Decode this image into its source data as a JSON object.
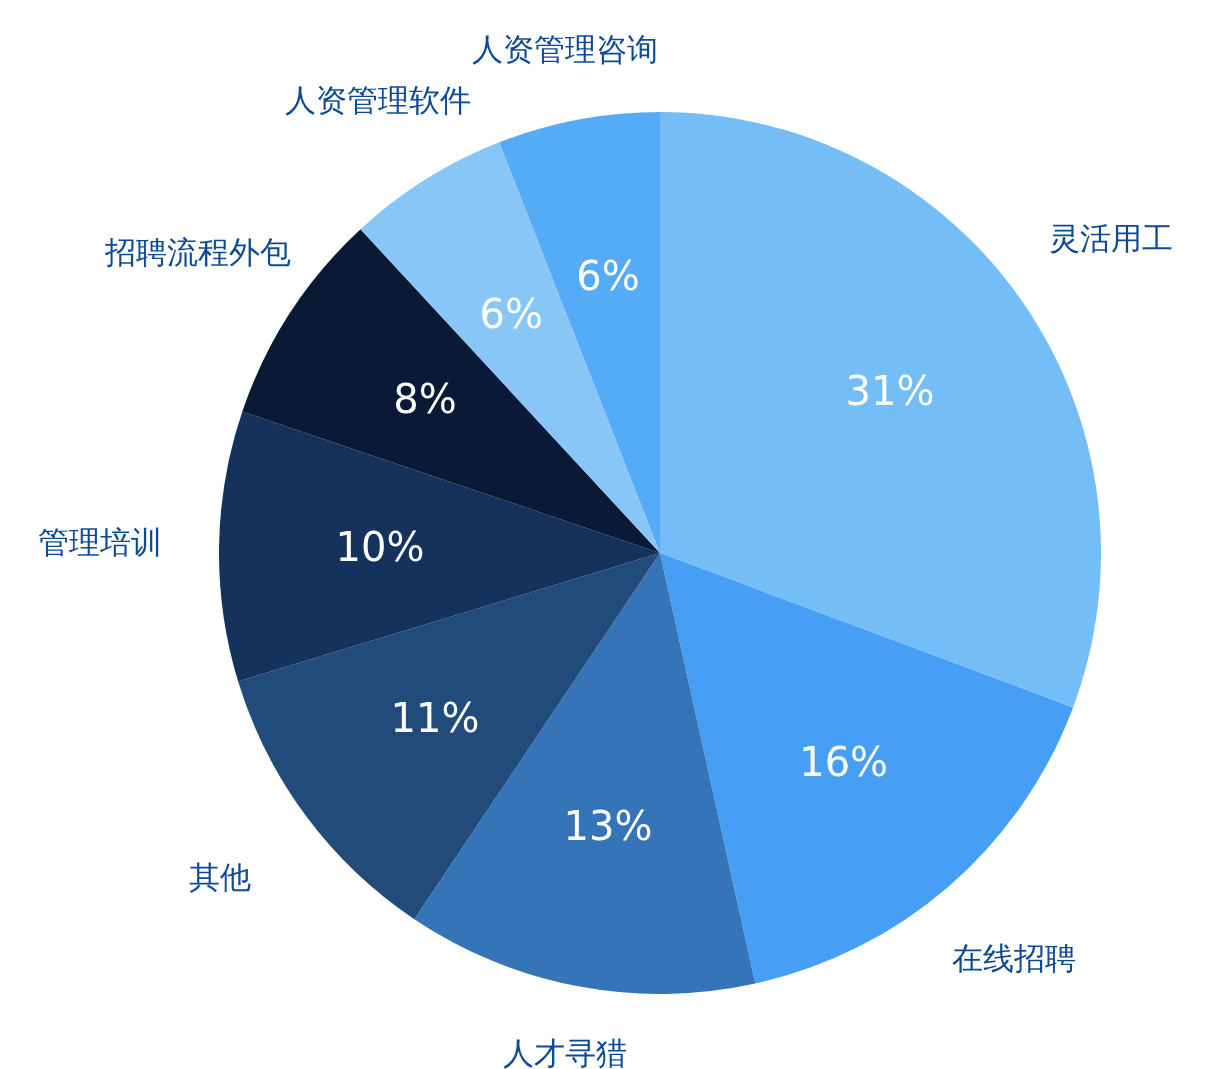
{
  "chart_data": {
    "type": "pie",
    "categories": [
      "灵活用工",
      "在线招聘",
      "人才寻猎",
      "其他",
      "管理培训",
      "招聘流程外包",
      "人资管理软件",
      "人资管理咨询"
    ],
    "values": [
      31,
      16,
      13,
      11,
      10,
      8,
      6,
      6
    ],
    "value_labels": [
      "31%",
      "16%",
      "13%",
      "11%",
      "10%",
      "8%",
      "6%",
      "6%"
    ],
    "colors": [
      "#74bdf7",
      "#479ef5",
      "#3574b7",
      "#204b7b",
      "#15325c",
      "#091936",
      "#88c6f8",
      "#56abf6"
    ]
  }
}
